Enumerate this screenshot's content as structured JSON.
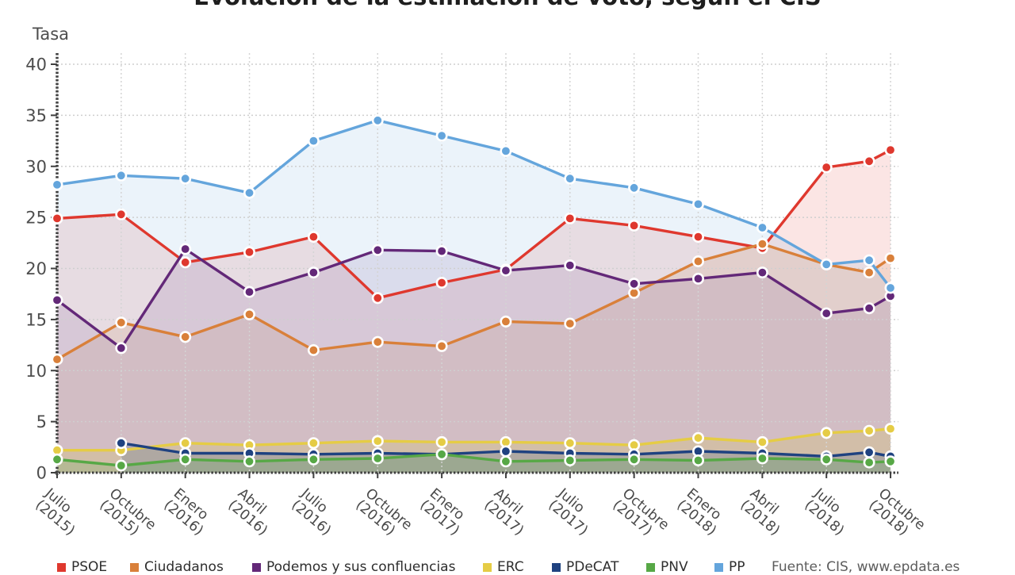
{
  "chart_data": {
    "type": "line",
    "title": "Evolución de la estimación de voto, según el CIS",
    "ylabel": "Tasa",
    "source": "Fuente: CIS, www.epdata.es",
    "ylim": [
      0,
      40
    ],
    "y_ticks": [
      0,
      5,
      10,
      15,
      20,
      25,
      30,
      35,
      40
    ],
    "grid": "dotted",
    "legend_position": "bottom",
    "x_months": [
      0,
      3,
      6,
      9,
      12,
      15,
      18,
      21,
      24,
      27,
      30,
      33,
      36,
      38,
      39
    ],
    "x_ticks": [
      {
        "month": 0,
        "label": "Julio",
        "year": "(2015)"
      },
      {
        "month": 3,
        "label": "Octubre",
        "year": "(2015)"
      },
      {
        "month": 6,
        "label": "Enero",
        "year": "(2016)"
      },
      {
        "month": 9,
        "label": "Abril",
        "year": "(2016)"
      },
      {
        "month": 12,
        "label": "Julio",
        "year": "(2016)"
      },
      {
        "month": 15,
        "label": "Octubre",
        "year": "(2016)"
      },
      {
        "month": 18,
        "label": "Enero",
        "year": "(2017)"
      },
      {
        "month": 21,
        "label": "Abril",
        "year": "(2017)"
      },
      {
        "month": 24,
        "label": "Julio",
        "year": "(2017)"
      },
      {
        "month": 27,
        "label": "Octubre",
        "year": "(2017)"
      },
      {
        "month": 30,
        "label": "Enero",
        "year": "(2018)"
      },
      {
        "month": 33,
        "label": "Abril",
        "year": "(2018)"
      },
      {
        "month": 36,
        "label": "Julio",
        "year": "(2018)"
      },
      {
        "month": 39,
        "label": "Octubre",
        "year": "(2018)"
      }
    ],
    "series": [
      {
        "name": "PSOE",
        "color": "#df382e",
        "values": [
          24.9,
          25.3,
          20.6,
          21.6,
          23.1,
          17.1,
          18.6,
          19.9,
          24.9,
          24.2,
          23.1,
          22.0,
          29.9,
          30.5,
          31.6
        ]
      },
      {
        "name": "Ciudadanos",
        "color": "#d9803a",
        "values": [
          11.1,
          14.7,
          13.3,
          15.5,
          12.0,
          12.8,
          12.4,
          14.8,
          14.6,
          17.6,
          20.7,
          22.4,
          20.4,
          19.6,
          21.0
        ]
      },
      {
        "name": "Podemos y sus confluencias",
        "color": "#632878",
        "values": [
          16.9,
          12.2,
          21.9,
          17.7,
          19.6,
          21.8,
          21.7,
          19.8,
          20.3,
          18.5,
          19.0,
          19.6,
          15.6,
          16.1,
          17.3
        ]
      },
      {
        "name": "ERC",
        "color": "#e5cc45",
        "values": [
          2.2,
          2.2,
          2.9,
          2.7,
          2.9,
          3.1,
          3.0,
          3.0,
          2.9,
          2.7,
          3.4,
          3.0,
          3.9,
          4.1,
          4.3
        ]
      },
      {
        "name": "PDeCAT",
        "color": "#1f4280",
        "values": [
          null,
          2.9,
          1.9,
          1.9,
          1.8,
          1.9,
          1.8,
          2.1,
          1.9,
          1.8,
          2.1,
          1.9,
          1.6,
          2.0,
          1.6
        ]
      },
      {
        "name": "PNV",
        "color": "#57a846",
        "values": [
          1.3,
          0.7,
          1.3,
          1.1,
          1.3,
          1.4,
          1.8,
          1.1,
          1.2,
          1.3,
          1.2,
          1.4,
          1.3,
          1.0,
          1.1
        ]
      },
      {
        "name": "PP",
        "color": "#64a5dc",
        "values": [
          28.2,
          29.1,
          28.8,
          27.4,
          32.5,
          34.5,
          33.0,
          31.5,
          28.8,
          27.9,
          26.3,
          24.0,
          20.4,
          20.8,
          18.1
        ]
      }
    ]
  }
}
